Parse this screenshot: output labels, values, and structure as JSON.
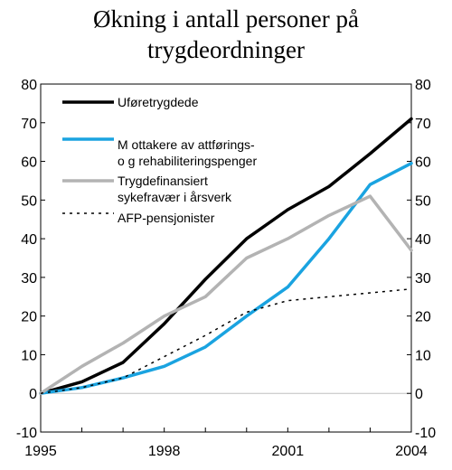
{
  "chart_data": {
    "type": "line",
    "title_lines": [
      "Økning i antall personer på",
      "trygdeordninger"
    ],
    "ylim": [
      -10,
      80
    ],
    "yticks": [
      -10,
      0,
      10,
      20,
      30,
      40,
      50,
      60,
      70,
      80
    ],
    "y_axis_both_sides": true,
    "x": [
      1995,
      1996,
      1997,
      1998,
      1999,
      2000,
      2001,
      2002,
      2003,
      2004
    ],
    "xticks": [
      "1995",
      "1998",
      "2001",
      "2004"
    ],
    "grid": false,
    "legend_position": "top-left",
    "series": [
      {
        "name": "Uføretrygdede",
        "color": "#000000",
        "style": "solid",
        "values": [
          0,
          3,
          8,
          18,
          29.5,
          40,
          47.5,
          53.5,
          62,
          71
        ]
      },
      {
        "name": "Mottakere av attførings- og rehabiliteringspenger",
        "legend_lines": [
          "M ottakere av attførings-",
          "o g rehabiliteringspenger"
        ],
        "color": "#1aa3e0",
        "style": "solid",
        "values": [
          0,
          1.5,
          4,
          7,
          12,
          20,
          27.5,
          40,
          54,
          59.5
        ]
      },
      {
        "name": "Trygdefinansiert sykefravær i årsverk",
        "legend_lines": [
          "Trygdefinansiert",
          "sykefravær i årsverk"
        ],
        "color": "#b3b3b3",
        "style": "solid",
        "values": [
          0,
          7,
          13,
          20,
          25,
          35,
          40,
          46,
          51,
          37
        ]
      },
      {
        "name": "AFP-pensjonister",
        "legend_lines": [
          "AFP-pensjonister"
        ],
        "color": "#000000",
        "style": "dotted",
        "values": [
          0,
          1.5,
          4,
          9.5,
          15,
          21,
          24,
          25,
          26,
          27
        ]
      }
    ]
  }
}
